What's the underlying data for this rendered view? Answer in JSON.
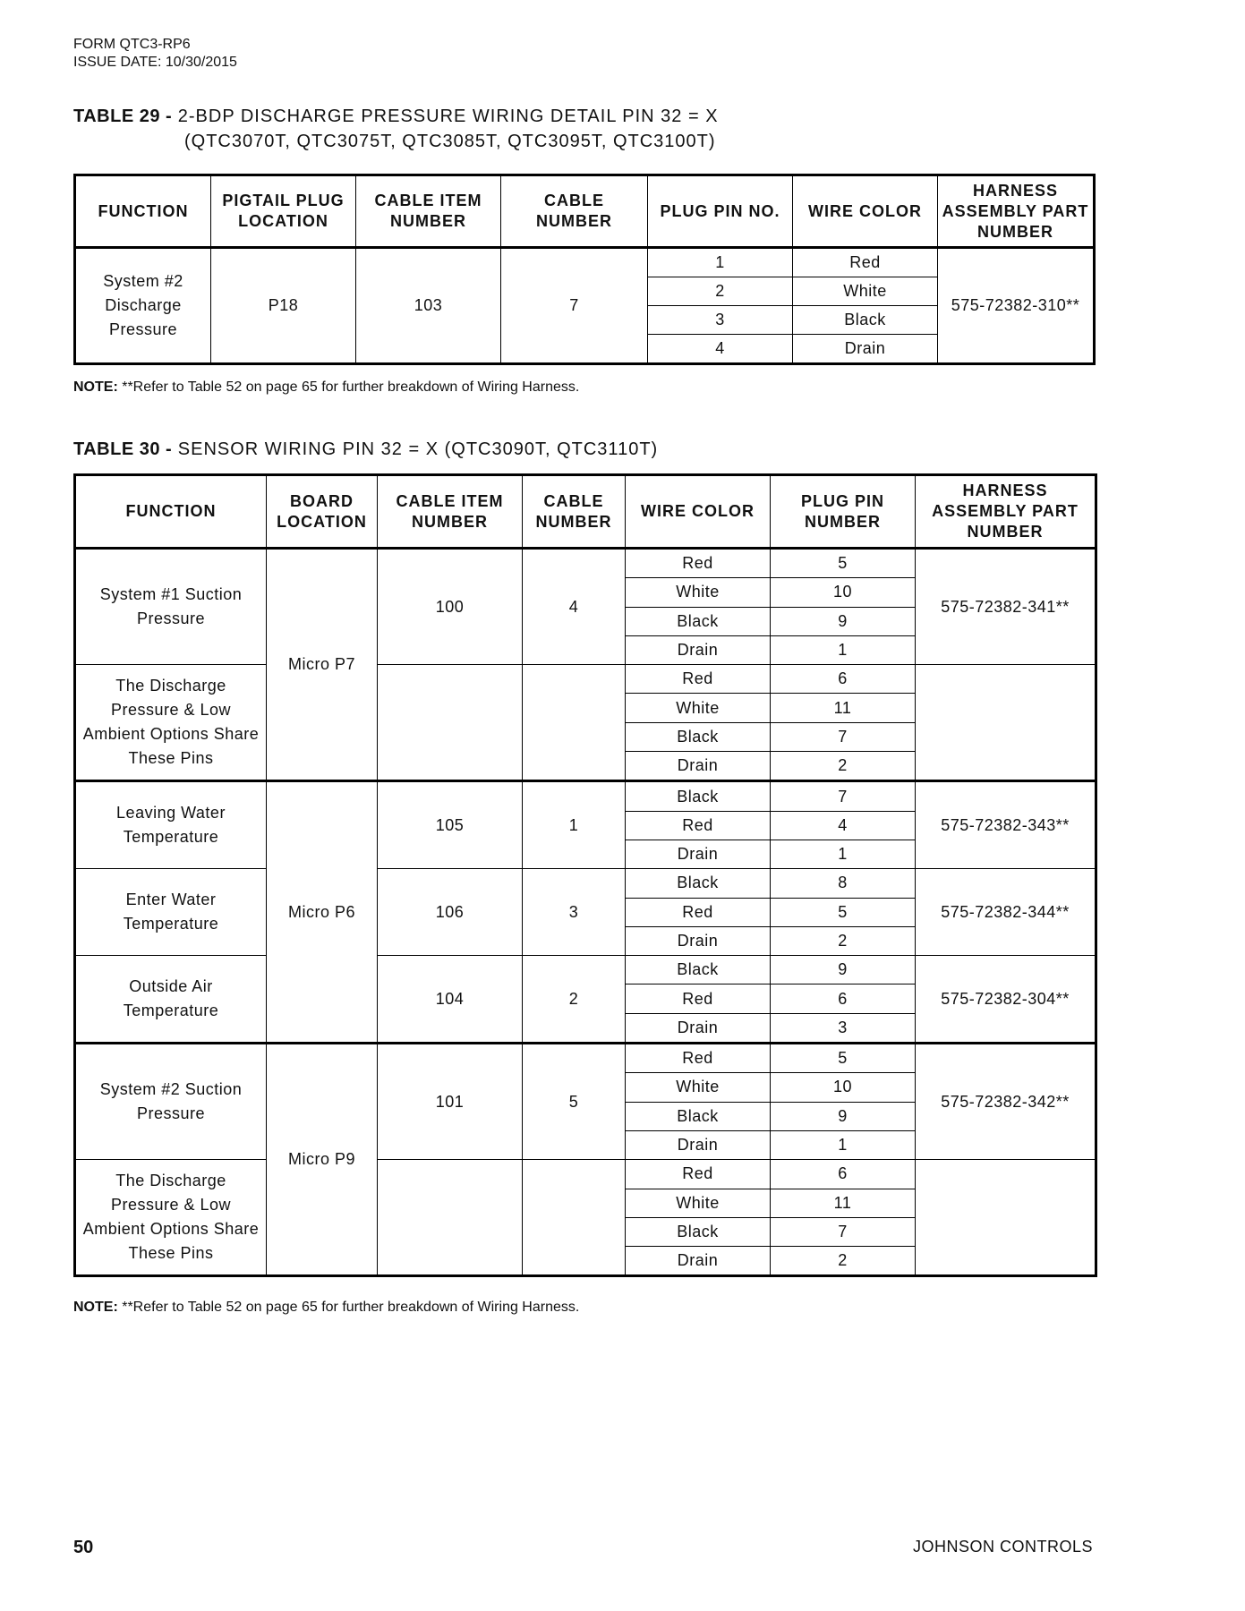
{
  "header": {
    "form": "FORM QTC3-RP6",
    "issue_date": "ISSUE DATE: 10/30/2015"
  },
  "table29": {
    "label": "TABLE 29 -",
    "title_line1": "2-BDP DISCHARGE PRESSURE WIRING DETAIL PIN 32 = X",
    "title_line2": "(QTC3070T, QTC3075T, QTC3085T, QTC3095T, QTC3100T)",
    "columns": [
      "FUNCTION",
      "PIGTAIL PLUG LOCATION",
      "CABLE ITEM NUMBER",
      "CABLE NUMBER",
      "PLUG PIN NO.",
      "WIRE COLOR",
      "HARNESS ASSEMBLY PART NUMBER"
    ],
    "row": {
      "function": "System #2 Discharge Pressure",
      "location": "P18",
      "item": "103",
      "cable": "7",
      "harness": "575-72382-310**",
      "wires": [
        [
          "1",
          "Red"
        ],
        [
          "2",
          "White"
        ],
        [
          "3",
          "Black"
        ],
        [
          "4",
          "Drain"
        ]
      ]
    },
    "note_label": "NOTE:",
    "note": " **Refer to Table 52 on page 65 for further breakdown of Wiring Harness."
  },
  "table30": {
    "label": "TABLE 30 -",
    "title": "SENSOR WIRING PIN 32 = X (QTC3090T, QTC3110T)",
    "columns": [
      "FUNCTION",
      "BOARD LOCATION",
      "CABLE ITEM NUMBER",
      "CABLE NUMBER",
      "WIRE COLOR",
      "PLUG PIN NUMBER",
      "HARNESS ASSEMBLY PART NUMBER"
    ],
    "boards": [
      {
        "board": "Micro P7",
        "groups": [
          {
            "function": "System #1 Suction Pressure",
            "item": "100",
            "cable": "4",
            "harness": "575-72382-341**",
            "wires": [
              [
                "Red",
                "5"
              ],
              [
                "White",
                "10"
              ],
              [
                "Black",
                "9"
              ],
              [
                "Drain",
                "1"
              ]
            ]
          },
          {
            "function": "The Discharge Pressure & Low Ambient Options Share These Pins",
            "item": "",
            "cable": "",
            "harness": "",
            "wires": [
              [
                "Red",
                "6"
              ],
              [
                "White",
                "11"
              ],
              [
                "Black",
                "7"
              ],
              [
                "Drain",
                "2"
              ]
            ]
          }
        ]
      },
      {
        "board": "Micro P6",
        "groups": [
          {
            "function": "Leaving Water Temperature",
            "item": "105",
            "cable": "1",
            "harness": "575-72382-343**",
            "wires": [
              [
                "Black",
                "7"
              ],
              [
                "Red",
                "4"
              ],
              [
                "Drain",
                "1"
              ]
            ]
          },
          {
            "function": "Enter Water Temperature",
            "item": "106",
            "cable": "3",
            "harness": "575-72382-344**",
            "wires": [
              [
                "Black",
                "8"
              ],
              [
                "Red",
                "5"
              ],
              [
                "Drain",
                "2"
              ]
            ]
          },
          {
            "function": "Outside Air Temperature",
            "item": "104",
            "cable": "2",
            "harness": "575-72382-304**",
            "wires": [
              [
                "Black",
                "9"
              ],
              [
                "Red",
                "6"
              ],
              [
                "Drain",
                "3"
              ]
            ]
          }
        ]
      },
      {
        "board": "Micro P9",
        "groups": [
          {
            "function": "System #2 Suction Pressure",
            "item": "101",
            "cable": "5",
            "harness": "575-72382-342**",
            "wires": [
              [
                "Red",
                "5"
              ],
              [
                "White",
                "10"
              ],
              [
                "Black",
                "9"
              ],
              [
                "Drain",
                "1"
              ]
            ]
          },
          {
            "function": "The Discharge Pressure & Low Ambient Options Share These Pins",
            "item": "",
            "cable": "",
            "harness": "",
            "wires": [
              [
                "Red",
                "6"
              ],
              [
                "White",
                "11"
              ],
              [
                "Black",
                "7"
              ],
              [
                "Drain",
                "2"
              ]
            ]
          }
        ]
      }
    ],
    "note_label": "NOTE:",
    "note": " **Refer to Table 52 on page 65 for further breakdown of Wiring Harness."
  },
  "footer": {
    "page": "50",
    "company": "JOHNSON CONTROLS"
  }
}
